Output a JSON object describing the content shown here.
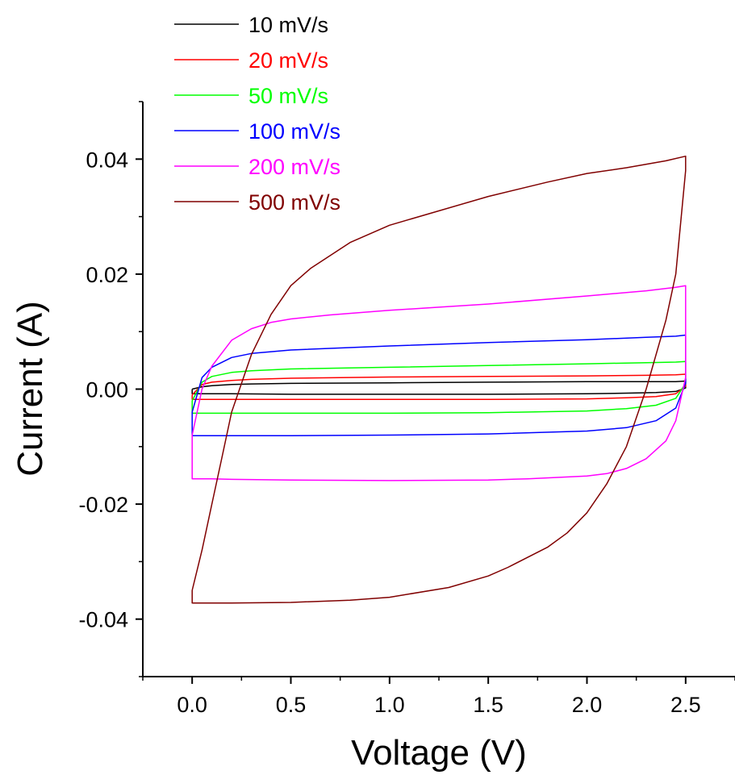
{
  "chart_data": {
    "type": "line",
    "title": "",
    "xlabel": "Voltage (V)",
    "ylabel": "Current (A)",
    "xlim": [
      -0.25,
      2.75
    ],
    "ylim": [
      -0.05,
      0.05
    ],
    "x_ticks": [
      0.0,
      0.5,
      1.0,
      1.5,
      2.0,
      2.5
    ],
    "x_tick_labels": [
      "0.0",
      "0.5",
      "1.0",
      "1.5",
      "2.0",
      "2.5"
    ],
    "y_ticks": [
      -0.04,
      -0.02,
      0.0,
      0.02,
      0.04
    ],
    "y_tick_labels": [
      "-0.04",
      "-0.02",
      "0.00",
      "0.02",
      "0.04"
    ],
    "legend_position": "top-left",
    "grid": false,
    "series": [
      {
        "name": "10 mV/s",
        "color": "#000000",
        "x": [
          0.0,
          0.05,
          0.1,
          0.2,
          0.3,
          0.5,
          1.0,
          1.5,
          2.0,
          2.3,
          2.45,
          2.5,
          2.5,
          2.45,
          2.35,
          2.2,
          2.0,
          1.5,
          1.0,
          0.5,
          0.2,
          0.1,
          0.05,
          0.0,
          0.0
        ],
        "y": [
          0.0,
          0.0004,
          0.0006,
          0.0008,
          0.0009,
          0.001,
          0.0011,
          0.0012,
          0.0013,
          0.0013,
          0.0013,
          0.0014,
          0.0002,
          -0.0004,
          -0.0006,
          -0.0007,
          -0.0008,
          -0.0009,
          -0.0009,
          -0.0009,
          -0.0008,
          -0.0008,
          -0.0008,
          -0.0008,
          0.0
        ]
      },
      {
        "name": "20 mV/s",
        "color": "#ff0000",
        "x": [
          0.0,
          0.05,
          0.1,
          0.2,
          0.3,
          0.5,
          1.0,
          1.5,
          2.0,
          2.3,
          2.45,
          2.5,
          2.5,
          2.45,
          2.35,
          2.2,
          2.0,
          1.5,
          1.0,
          0.5,
          0.2,
          0.1,
          0.05,
          0.0,
          0.0
        ],
        "y": [
          -0.001,
          0.0008,
          0.0012,
          0.0015,
          0.0017,
          0.0019,
          0.0021,
          0.0022,
          0.0023,
          0.0024,
          0.0025,
          0.0026,
          0.0005,
          -0.0008,
          -0.0013,
          -0.0015,
          -0.0017,
          -0.0018,
          -0.0018,
          -0.0018,
          -0.0018,
          -0.0018,
          -0.0018,
          -0.0018,
          -0.001
        ]
      },
      {
        "name": "50 mV/s",
        "color": "#00ff00",
        "x": [
          0.0,
          0.05,
          0.1,
          0.2,
          0.3,
          0.5,
          1.0,
          1.5,
          2.0,
          2.3,
          2.45,
          2.5,
          2.5,
          2.45,
          2.35,
          2.2,
          2.0,
          1.5,
          1.0,
          0.5,
          0.2,
          0.1,
          0.05,
          0.0,
          0.0
        ],
        "y": [
          -0.002,
          0.0012,
          0.0022,
          0.0029,
          0.0032,
          0.0035,
          0.0038,
          0.0041,
          0.0044,
          0.0046,
          0.0047,
          0.0048,
          0.001,
          -0.0016,
          -0.0028,
          -0.0034,
          -0.0038,
          -0.0041,
          -0.0042,
          -0.0042,
          -0.0042,
          -0.0042,
          -0.0042,
          -0.0042,
          -0.002
        ]
      },
      {
        "name": "100 mV/s",
        "color": "#0000ff",
        "x": [
          0.0,
          0.05,
          0.1,
          0.2,
          0.3,
          0.5,
          1.0,
          1.5,
          2.0,
          2.3,
          2.45,
          2.5,
          2.5,
          2.45,
          2.35,
          2.2,
          2.0,
          1.5,
          1.0,
          0.5,
          0.2,
          0.1,
          0.05,
          0.0,
          0.0
        ],
        "y": [
          -0.004,
          0.002,
          0.0038,
          0.0055,
          0.0062,
          0.0068,
          0.0075,
          0.0081,
          0.0086,
          0.009,
          0.0092,
          0.0094,
          0.001,
          -0.0033,
          -0.0055,
          -0.0067,
          -0.0073,
          -0.0078,
          -0.008,
          -0.0081,
          -0.0081,
          -0.0081,
          -0.0081,
          -0.0081,
          -0.004
        ]
      },
      {
        "name": "200 mV/s",
        "color": "#ff00ff",
        "x": [
          0.0,
          0.05,
          0.1,
          0.2,
          0.3,
          0.4,
          0.5,
          0.7,
          1.0,
          1.5,
          2.0,
          2.3,
          2.45,
          2.5,
          2.5,
          2.45,
          2.4,
          2.3,
          2.2,
          2.1,
          2.0,
          1.7,
          1.5,
          1.0,
          0.5,
          0.2,
          0.1,
          0.05,
          0.0,
          0.0
        ],
        "y": [
          -0.008,
          0.0,
          0.004,
          0.0085,
          0.0105,
          0.0116,
          0.0122,
          0.0129,
          0.0137,
          0.0148,
          0.0162,
          0.0171,
          0.0177,
          0.018,
          0.002,
          -0.0055,
          -0.009,
          -0.0121,
          -0.0138,
          -0.0147,
          -0.0151,
          -0.0156,
          -0.0158,
          -0.0159,
          -0.0158,
          -0.0157,
          -0.0156,
          -0.0156,
          -0.0156,
          -0.008
        ]
      },
      {
        "name": "500 mV/s",
        "color": "#800000",
        "x": [
          0.0,
          0.05,
          0.1,
          0.15,
          0.2,
          0.3,
          0.4,
          0.5,
          0.6,
          0.8,
          1.0,
          1.2,
          1.5,
          1.8,
          2.0,
          2.2,
          2.4,
          2.5,
          2.5,
          2.45,
          2.4,
          2.3,
          2.2,
          2.1,
          2.0,
          1.9,
          1.8,
          1.6,
          1.5,
          1.3,
          1.0,
          0.8,
          0.5,
          0.2,
          0.1,
          0.05,
          0.0,
          0.0
        ],
        "y": [
          -0.035,
          -0.028,
          -0.02,
          -0.012,
          -0.004,
          0.006,
          0.013,
          0.018,
          0.021,
          0.0255,
          0.0285,
          0.0305,
          0.0335,
          0.036,
          0.0375,
          0.0385,
          0.0397,
          0.0405,
          0.038,
          0.02,
          0.012,
          0.0,
          -0.01,
          -0.0165,
          -0.0215,
          -0.025,
          -0.0275,
          -0.031,
          -0.0325,
          -0.0345,
          -0.0362,
          -0.0367,
          -0.0371,
          -0.0372,
          -0.0372,
          -0.0372,
          -0.0372,
          -0.035
        ]
      }
    ]
  }
}
